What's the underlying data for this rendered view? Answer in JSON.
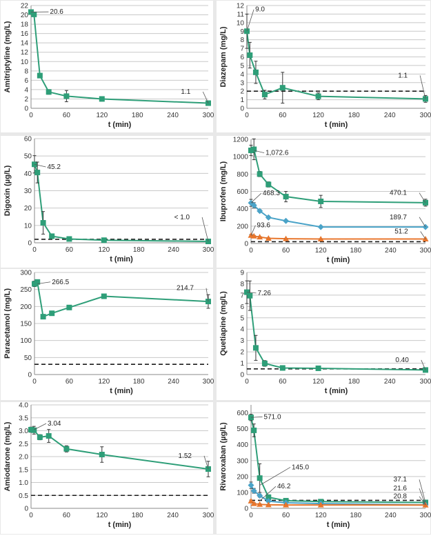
{
  "colors": {
    "green": "#2e9e78",
    "blue": "#4aa3c8",
    "orange": "#e8762c",
    "threshold": "#1a1a1a",
    "grid": "#c8c8c8",
    "panel_bg": "#ffffff",
    "page_bg": "#e8e8e8"
  },
  "chart_data": [
    {
      "type": "line",
      "ylabel": "Amitriptyline (mg/L)",
      "xlabel": "t (min)",
      "xlim": [
        0,
        300
      ],
      "xticks": [
        0,
        60,
        120,
        180,
        240,
        300
      ],
      "ylim": [
        0,
        22
      ],
      "yticks": [
        0,
        2,
        4,
        6,
        8,
        10,
        12,
        14,
        16,
        18,
        20,
        22
      ],
      "threshold": null,
      "series": [
        {
          "color": "green",
          "marker": "square",
          "x": [
            0,
            5,
            15,
            30,
            60,
            120,
            300
          ],
          "y": [
            20.6,
            20.1,
            7.0,
            3.5,
            2.6,
            2.0,
            1.1
          ],
          "err": [
            0.4,
            0.3,
            0.3,
            0.5,
            1.2,
            0.3,
            0.4
          ]
        }
      ],
      "annotations": [
        {
          "text": "20.6",
          "x": 0,
          "y": 20.6,
          "tx": 32,
          "ty": 20.2
        },
        {
          "text": "1.1",
          "x": 300,
          "y": 1.1,
          "tx": 270,
          "ty": 3.1
        }
      ]
    },
    {
      "type": "line",
      "ylabel": "Diazepam (mg/L)",
      "xlabel": "t (min)",
      "xlim": [
        0,
        300
      ],
      "xticks": [
        0,
        60,
        120,
        180,
        240,
        300
      ],
      "ylim": [
        0,
        12
      ],
      "yticks": [
        0,
        1,
        2,
        3,
        4,
        5,
        6,
        7,
        8,
        9,
        10,
        11,
        12
      ],
      "threshold": 2,
      "series": [
        {
          "color": "green",
          "marker": "square",
          "x": [
            0,
            5,
            15,
            30,
            60,
            120,
            300
          ],
          "y": [
            9.0,
            6.2,
            4.2,
            1.6,
            2.4,
            1.4,
            1.1
          ],
          "err": [
            2.0,
            1.5,
            1.3,
            0.5,
            1.8,
            0.4,
            0.4
          ]
        }
      ],
      "annotations": [
        {
          "text": "9.0",
          "x": 0,
          "y": 9.0,
          "tx": 14,
          "ty": 11.3
        },
        {
          "text": "1.1",
          "x": 300,
          "y": 1.1,
          "tx": 270,
          "ty": 3.6
        }
      ]
    },
    {
      "type": "line",
      "ylabel": "Digoxin (µg/L)",
      "xlabel": "t (min)",
      "xlim": [
        0,
        300
      ],
      "xticks": [
        0,
        60,
        120,
        180,
        240,
        300
      ],
      "ylim": [
        0,
        60
      ],
      "yticks": [
        0,
        10,
        20,
        30,
        40,
        50,
        60
      ],
      "threshold": 2,
      "series": [
        {
          "color": "green",
          "marker": "square",
          "x": [
            0,
            5,
            15,
            30,
            60,
            120,
            300
          ],
          "y": [
            45.2,
            40.5,
            11.5,
            3.8,
            2.2,
            1.5,
            0.8
          ],
          "err": [
            5.0,
            6.0,
            6.5,
            1.0,
            0.5,
            0.4,
            0.3
          ]
        }
      ],
      "annotations": [
        {
          "text": "45.2",
          "x": 0,
          "y": 45.2,
          "tx": 22,
          "ty": 42.5
        },
        {
          "text": "< 1.0",
          "x": 300,
          "y": 0.8,
          "tx": 268,
          "ty": 13.5
        }
      ]
    },
    {
      "type": "line",
      "ylabel": "Ibuprofen (mg/L)",
      "xlabel": "t (min)",
      "xlim": [
        0,
        300
      ],
      "xticks": [
        0,
        60,
        120,
        180,
        240,
        300
      ],
      "ylim": [
        0,
        1200
      ],
      "yticks": [
        0,
        200,
        400,
        600,
        800,
        1000,
        1200
      ],
      "threshold": 20,
      "series": [
        {
          "color": "green",
          "marker": "square",
          "x": [
            0,
            5,
            15,
            30,
            60,
            120,
            300
          ],
          "y": [
            1072.6,
            1085,
            800,
            680,
            540,
            485,
            470.1
          ],
          "err": [
            60,
            120,
            30,
            30,
            60,
            70,
            40
          ]
        },
        {
          "color": "blue",
          "marker": "diamond",
          "x": [
            0,
            5,
            15,
            30,
            60,
            120,
            300
          ],
          "y": [
            468.3,
            440,
            375,
            300,
            260,
            190,
            189.7
          ],
          "err": [
            40,
            30,
            15,
            15,
            10,
            10,
            10
          ]
        },
        {
          "color": "orange",
          "marker": "triangle",
          "x": [
            0,
            5,
            15,
            30,
            60,
            120,
            300
          ],
          "y": [
            93.6,
            85,
            75,
            60,
            55,
            52,
            51.2
          ],
          "err": [
            10,
            8,
            5,
            5,
            4,
            3,
            3
          ]
        }
      ],
      "annotations": [
        {
          "text": "1,072.6",
          "x": 5,
          "y": 1072.6,
          "tx": 25,
          "ty": 1020
        },
        {
          "text": "468.3",
          "x": 0,
          "y": 468.3,
          "tx": 20,
          "ty": 555
        },
        {
          "text": "93.6",
          "x": 0,
          "y": 93.6,
          "tx": 10,
          "ty": 185
        },
        {
          "text": "470.1",
          "x": 300,
          "y": 470.1,
          "tx": 268,
          "ty": 560
        },
        {
          "text": "189.7",
          "x": 300,
          "y": 189.7,
          "tx": 268,
          "ty": 280
        },
        {
          "text": "51.2",
          "x": 300,
          "y": 51.2,
          "tx": 270,
          "ty": 115
        }
      ]
    },
    {
      "type": "line",
      "ylabel": "Paracetamol (mg/L)",
      "xlabel": "t (min)",
      "xlim": [
        0,
        300
      ],
      "xticks": [
        0,
        60,
        120,
        180,
        240,
        300
      ],
      "ylim": [
        0,
        300
      ],
      "yticks": [
        0,
        50,
        100,
        150,
        200,
        250,
        300
      ],
      "threshold": 30,
      "series": [
        {
          "color": "green",
          "marker": "square",
          "x": [
            0,
            5,
            15,
            30,
            60,
            120,
            300
          ],
          "y": [
            266.5,
            272,
            170,
            180,
            197,
            230,
            214.7
          ],
          "err": [
            8,
            6,
            5,
            6,
            5,
            4,
            20
          ]
        }
      ],
      "annotations": [
        {
          "text": "266.5",
          "x": 5,
          "y": 266.5,
          "tx": 30,
          "ty": 266
        },
        {
          "text": "214.7",
          "x": 300,
          "y": 214.7,
          "tx": 275,
          "ty": 248
        }
      ]
    },
    {
      "type": "line",
      "ylabel": "Quetiapine (mg/L)",
      "xlabel": "t (min)",
      "xlim": [
        0,
        300
      ],
      "xticks": [
        0,
        60,
        120,
        180,
        240,
        300
      ],
      "ylim": [
        0,
        9
      ],
      "yticks": [
        0,
        1,
        2,
        3,
        4,
        5,
        6,
        7,
        8,
        9
      ],
      "threshold": 0.5,
      "series": [
        {
          "color": "green",
          "marker": "square",
          "x": [
            0,
            5,
            15,
            30,
            60,
            120,
            300
          ],
          "y": [
            7.26,
            6.95,
            2.35,
            0.98,
            0.58,
            0.55,
            0.4
          ],
          "err": [
            1.0,
            1.3,
            1.1,
            0.25,
            0.12,
            0.1,
            0.1
          ]
        }
      ],
      "annotations": [
        {
          "text": "7.26",
          "x": 0,
          "y": 7.26,
          "tx": 18,
          "ty": 7.0
        },
        {
          "text": "0.40",
          "x": 300,
          "y": 0.4,
          "tx": 272,
          "ty": 1.1
        }
      ]
    },
    {
      "type": "line",
      "ylabel": "Amiodarone (mg/L)",
      "xlabel": "t (min)",
      "xlim": [
        0,
        300
      ],
      "xticks": [
        0,
        60,
        120,
        180,
        240,
        300
      ],
      "ylim": [
        0,
        4.0
      ],
      "yticks": [
        0,
        0.5,
        1.0,
        1.5,
        2.0,
        2.5,
        3.0,
        3.5,
        4.0
      ],
      "ytick_labels": [
        "0",
        "0.5",
        "1.0",
        "1.5",
        "2.0",
        "2.5",
        "3.0",
        "3.5",
        "4.0"
      ],
      "threshold": 0.5,
      "series": [
        {
          "color": "green",
          "marker": "square",
          "x": [
            0,
            5,
            15,
            30,
            60,
            120,
            300
          ],
          "y": [
            3.04,
            3.02,
            2.75,
            2.8,
            2.3,
            2.08,
            1.52
          ],
          "err": [
            0.1,
            0.15,
            0.1,
            0.25,
            0.12,
            0.3,
            0.3
          ]
        }
      ],
      "annotations": [
        {
          "text": "3.04",
          "x": 5,
          "y": 3.04,
          "tx": 28,
          "ty": 3.2
        },
        {
          "text": "1.52",
          "x": 300,
          "y": 1.52,
          "tx": 272,
          "ty": 1.95
        }
      ]
    },
    {
      "type": "line",
      "ylabel": "Rivaroxaban (µg/L)",
      "xlabel": "t (min)",
      "xlim": [
        0,
        300
      ],
      "xticks": [
        0,
        60,
        120,
        180,
        240,
        300
      ],
      "ylim": [
        0,
        650
      ],
      "yticks": [
        0,
        100,
        200,
        300,
        400,
        500,
        600
      ],
      "threshold": 50,
      "series": [
        {
          "color": "green",
          "marker": "square",
          "x": [
            0,
            5,
            15,
            30,
            60,
            120,
            300
          ],
          "y": [
            571.0,
            490,
            190,
            70,
            48,
            42,
            37.1
          ],
          "err": [
            20,
            40,
            90,
            15,
            10,
            10,
            8
          ]
        },
        {
          "color": "blue",
          "marker": "diamond",
          "x": [
            0,
            5,
            15,
            30,
            60,
            120,
            300
          ],
          "y": [
            145.0,
            110,
            80,
            45,
            35,
            30,
            21.6
          ],
          "err": [
            20,
            15,
            10,
            8,
            6,
            5,
            4
          ]
        },
        {
          "color": "orange",
          "marker": "triangle",
          "x": [
            0,
            5,
            15,
            30,
            60,
            120,
            300
          ],
          "y": [
            46.2,
            30,
            25,
            22,
            21,
            21,
            20.8
          ],
          "err": [
            6,
            5,
            4,
            3,
            3,
            3,
            3
          ]
        }
      ],
      "annotations": [
        {
          "text": "571.0",
          "x": 0,
          "y": 571.0,
          "tx": 22,
          "ty": 562
        },
        {
          "text": "145.0",
          "x": 15,
          "y": 145.0,
          "tx": 70,
          "ty": 245
        },
        {
          "text": "46.2",
          "x": 15,
          "y": 46.2,
          "tx": 45,
          "ty": 125
        },
        {
          "text": "37.1",
          "x": 300,
          "y": 37.1,
          "tx": 268,
          "ty": 168
        },
        {
          "text": "21.6",
          "x": 300,
          "y": 21.6,
          "tx": 268,
          "ty": 112
        },
        {
          "text": "20.8",
          "x": 300,
          "y": 20.8,
          "tx": 268,
          "ty": 62
        }
      ]
    }
  ]
}
